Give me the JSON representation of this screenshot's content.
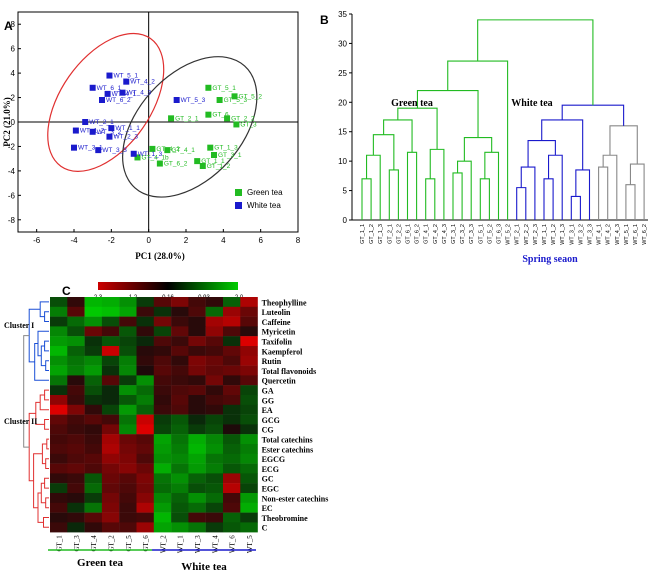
{
  "panels": {
    "a": "A",
    "b": "B",
    "c": "C"
  },
  "chart_data": [
    {
      "type": "scatter",
      "xlabel": "PC1 (28.0%)",
      "ylabel": "PC2 (21.0%)",
      "xlim": [
        -7,
        8
      ],
      "ylim": [
        -9,
        9
      ],
      "x_ticks": [
        "-6",
        "-4",
        "-2",
        "0",
        "2",
        "4",
        "6",
        "8"
      ],
      "y_ticks": [
        "8",
        "6",
        "4",
        "2",
        "0",
        "-2",
        "-4",
        "-6",
        "-8"
      ],
      "legend_position": "bottom-right",
      "colors": {
        "green": "#22bb22",
        "blue": "#1a1acc",
        "ellipse_red": "#e03030",
        "ellipse_black": "#333333"
      },
      "series": [
        {
          "name": "Green tea",
          "points": [
            {
              "label": "GT_5_1",
              "x": 3.2,
              "y": 2.8
            },
            {
              "label": "GT_5_2",
              "x": 4.6,
              "y": 2.1
            },
            {
              "label": "GT_5_3",
              "x": 3.8,
              "y": 1.8
            },
            {
              "label": "GT_6",
              "x": 3.2,
              "y": 0.6
            },
            {
              "label": "GT_2_2",
              "x": 4.2,
              "y": 0.3
            },
            {
              "label": "GT_2_1",
              "x": 1.2,
              "y": 0.3
            },
            {
              "label": "GT_3",
              "x": 4.7,
              "y": -0.2
            },
            {
              "label": "GT_4_2",
              "x": 0.2,
              "y": -2.2
            },
            {
              "label": "GT_4_1",
              "x": 1.0,
              "y": -2.3
            },
            {
              "label": "GT_1_3",
              "x": 3.3,
              "y": -2.1
            },
            {
              "label": "GT_3_1",
              "x": 3.5,
              "y": -2.7
            },
            {
              "label": "GT_4_1b",
              "x": -0.6,
              "y": -2.9
            },
            {
              "label": "GT_6_2",
              "x": 0.6,
              "y": -3.4
            },
            {
              "label": "GT_1_1",
              "x": 2.6,
              "y": -3.2
            },
            {
              "label": "GT_1_2",
              "x": 2.9,
              "y": -3.6
            }
          ]
        },
        {
          "name": "White tea",
          "points": [
            {
              "label": "WT_5_1",
              "x": -2.1,
              "y": 3.8
            },
            {
              "label": "WT_4_2",
              "x": -1.2,
              "y": 3.3
            },
            {
              "label": "WT_6_1",
              "x": -3.0,
              "y": 2.8
            },
            {
              "label": "WT_4_3",
              "x": -1.4,
              "y": 2.4
            },
            {
              "label": "WT_4_1",
              "x": -2.2,
              "y": 2.3
            },
            {
              "label": "WT_6_2",
              "x": -2.5,
              "y": 1.8
            },
            {
              "label": "WT_5_3",
              "x": 1.5,
              "y": 1.8
            },
            {
              "label": "WT_2_1",
              "x": -3.4,
              "y": 0.0
            },
            {
              "label": "WT_1_1",
              "x": -2.0,
              "y": -0.5
            },
            {
              "label": "WT_3_2",
              "x": -3.0,
              "y": -0.8
            },
            {
              "label": "WT_2_3",
              "x": -2.1,
              "y": -1.2
            },
            {
              "label": "WT_1_2",
              "x": -3.9,
              "y": -0.7
            },
            {
              "label": "WT_3_1",
              "x": -4.0,
              "y": -2.1
            },
            {
              "label": "WT_3_3",
              "x": -2.7,
              "y": -2.3
            },
            {
              "label": "WT_1_3",
              "x": -0.8,
              "y": -2.6
            }
          ]
        }
      ]
    },
    {
      "type": "dendrogram",
      "xlabel": "Spring seaon",
      "ylim": [
        0,
        35
      ],
      "y_ticks": [
        "0",
        "5",
        "10",
        "15",
        "20",
        "25",
        "30",
        "35"
      ],
      "group_labels": [
        "Green tea",
        "White tea"
      ],
      "leaves": [
        "GT_1_1",
        "GT_1_2",
        "GT_1_3",
        "GT_2_1",
        "GT_2_2",
        "GT_6_1",
        "GT_6_2",
        "GT_4_1",
        "GT_4_2",
        "GT_4_3",
        "GT_3_1",
        "GT_3_2",
        "GT_3_3",
        "GT_5_1",
        "GT_5_2",
        "GT_6_3",
        "WT_5_2",
        "WT_2_1",
        "WT_2_2",
        "WT_2_3",
        "WT_1_1",
        "WT_1_2",
        "WT_1_3",
        "WT_3_1",
        "WT_3_2",
        "WT_3_3",
        "WT_4_1",
        "WT_4_2",
        "WT_4_3",
        "WT_5_1",
        "WT_6_1",
        "WT_6_2"
      ],
      "colors": {
        "green": "#22bb22",
        "blue": "#1a1acc",
        "gray": "#888888"
      }
    },
    {
      "type": "heatmap",
      "color_scale": {
        "ticks": [
          "2.3",
          "1.2",
          "0.16",
          "-0.93",
          "-2.0"
        ],
        "colors": [
          "#cc0000",
          "#000000",
          "#00cc00"
        ]
      },
      "rows": [
        "Theophylline",
        "Luteolin",
        "Caffeine",
        "Myricetin",
        "Taxifolin",
        "Kaempferol",
        "Rutin",
        "Total flavonoids",
        "Quercetin",
        "GA",
        "GG",
        "EA",
        "GCG",
        "CG",
        "Total catechins",
        "Ester catechins",
        "EGCG",
        "ECG",
        "GC",
        "EGC",
        "Non-ester catechins",
        "EC",
        "Theobromine",
        "C"
      ],
      "columns": [
        "GT_1",
        "GT_3",
        "GT_4",
        "GT_2",
        "GT_5",
        "GT_6",
        "WT_2",
        "WT_1",
        "WT_3",
        "WT_4",
        "WT_6",
        "WT_5"
      ],
      "clusters": [
        "Cluster I",
        "Cluster II"
      ],
      "group_labels": [
        "Green tea",
        "White tea"
      ],
      "values": [
        [
          -0.5,
          0.2,
          -1.6,
          -1.5,
          -1.2,
          -0.3,
          0.6,
          1.0,
          0.4,
          0.2,
          -0.7,
          1.5
        ],
        [
          -1.0,
          0.6,
          -1.8,
          -1.7,
          -1.4,
          0.3,
          -0.2,
          0.1,
          0.5,
          -0.8,
          1.3,
          0.8
        ],
        [
          -0.3,
          -0.8,
          -1.2,
          -0.5,
          0.4,
          -0.2,
          0.9,
          0.3,
          0.1,
          1.4,
          1.6,
          0.6
        ],
        [
          -1.1,
          -0.5,
          0.8,
          0.4,
          -0.6,
          0.2,
          -0.4,
          0.7,
          0.1,
          1.2,
          0.5,
          0.1
        ],
        [
          -1.3,
          -1.2,
          -0.2,
          -0.6,
          -0.4,
          -0.1,
          0.5,
          0.3,
          0.9,
          0.6,
          -0.2,
          2.0
        ],
        [
          -1.6,
          -0.7,
          -0.3,
          1.8,
          -0.5,
          0.1,
          0.2,
          0.6,
          0.3,
          0.4,
          0.7,
          1.2
        ],
        [
          -1.2,
          -0.9,
          -1.1,
          -0.4,
          -1.0,
          0.2,
          0.5,
          0.2,
          1.0,
          0.8,
          0.5,
          1.3
        ],
        [
          -1.4,
          -1.0,
          -1.3,
          -0.2,
          -1.1,
          0.0,
          0.6,
          0.4,
          0.9,
          0.7,
          0.8,
          1.0
        ],
        [
          -0.9,
          0.1,
          -0.7,
          0.6,
          -0.3,
          -1.2,
          0.4,
          0.3,
          0.2,
          0.9,
          0.2,
          0.6
        ],
        [
          -0.2,
          0.4,
          -0.5,
          -0.1,
          -1.2,
          -0.8,
          0.3,
          0.5,
          0.6,
          0.2,
          0.7,
          -0.4
        ],
        [
          1.2,
          0.3,
          -0.2,
          -0.1,
          -0.6,
          -1.0,
          0.2,
          0.6,
          0.1,
          0.4,
          0.5,
          -0.5
        ],
        [
          2.0,
          1.0,
          0.2,
          -0.4,
          -1.3,
          -0.7,
          0.3,
          0.5,
          0.1,
          0.2,
          -0.2,
          -0.4
        ],
        [
          0.7,
          0.4,
          0.6,
          0.4,
          -0.9,
          1.8,
          -0.3,
          -0.6,
          -0.1,
          -0.4,
          -0.2,
          -0.5
        ],
        [
          0.5,
          0.3,
          0.2,
          0.9,
          -1.1,
          2.0,
          -0.4,
          -0.7,
          -0.3,
          -0.5,
          0.0,
          -0.2
        ],
        [
          0.4,
          0.5,
          0.3,
          1.4,
          0.8,
          0.6,
          -1.4,
          -0.9,
          -1.5,
          -1.1,
          -0.6,
          -1.2
        ],
        [
          0.5,
          0.6,
          0.4,
          1.5,
          0.9,
          0.7,
          -1.3,
          -1.0,
          -1.6,
          -1.2,
          -0.7,
          -1.0
        ],
        [
          0.3,
          0.5,
          0.6,
          1.2,
          1.0,
          0.5,
          -1.2,
          -1.1,
          -1.4,
          -0.9,
          -0.8,
          -1.1
        ],
        [
          0.6,
          0.7,
          0.5,
          0.9,
          1.1,
          0.8,
          -1.5,
          -0.9,
          -1.3,
          -1.0,
          -0.6,
          -0.8
        ],
        [
          0.2,
          0.3,
          -0.6,
          0.8,
          0.6,
          1.0,
          -0.9,
          -1.2,
          -0.7,
          -0.5,
          1.3,
          -0.6
        ],
        [
          -0.3,
          0.4,
          -0.8,
          0.7,
          0.5,
          0.9,
          -0.8,
          -1.0,
          -0.5,
          -0.6,
          1.6,
          -0.4
        ],
        [
          0.2,
          0.1,
          -0.3,
          0.9,
          0.4,
          1.1,
          -1.1,
          -0.7,
          -1.2,
          -0.8,
          0.4,
          -1.3
        ],
        [
          0.4,
          -0.2,
          -0.9,
          1.0,
          0.3,
          1.5,
          -1.3,
          -0.6,
          -0.8,
          -0.4,
          0.5,
          -1.5
        ],
        [
          0.1,
          0.2,
          0.6,
          1.1,
          0.3,
          0.4,
          -1.6,
          -0.5,
          0.4,
          0.3,
          -0.7,
          -0.3
        ],
        [
          0.3,
          -0.1,
          0.2,
          0.6,
          0.5,
          1.3,
          -1.4,
          -1.2,
          -0.9,
          -0.3,
          -0.6,
          -0.8
        ]
      ]
    }
  ]
}
